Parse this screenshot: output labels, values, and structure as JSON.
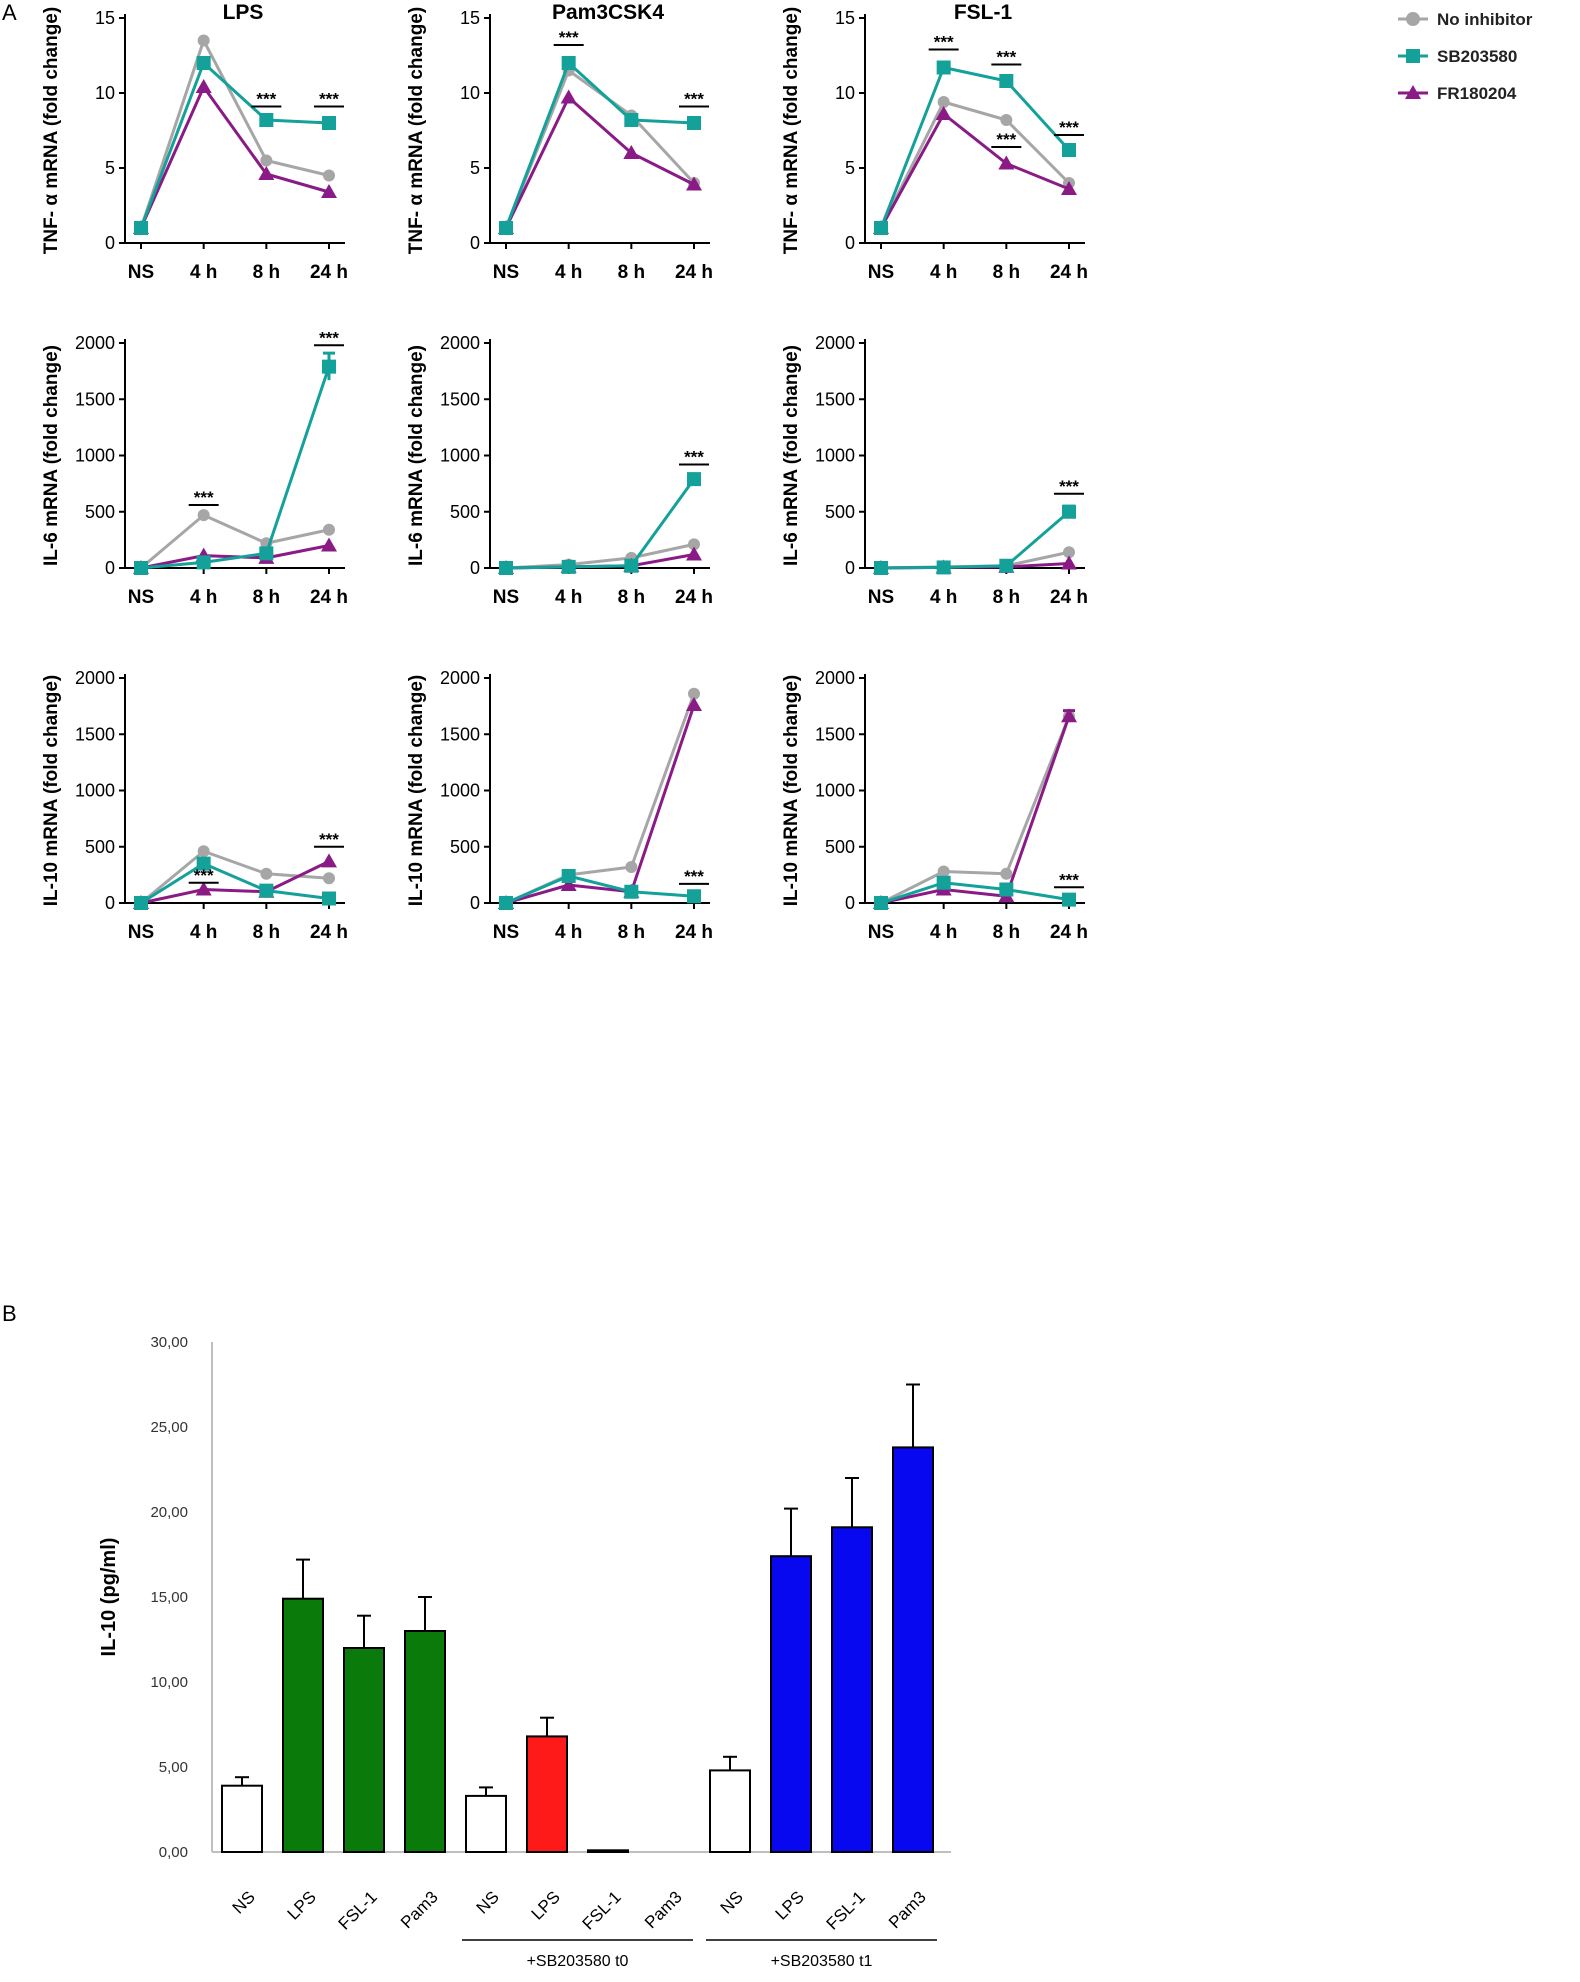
{
  "panel_labels": {
    "a": "A",
    "b": "B"
  },
  "legend": [
    {
      "name": "No inhibitor",
      "color": "#a6a6a6",
      "marker": "circle"
    },
    {
      "name": "SB203580",
      "color": "#13a19a",
      "marker": "square"
    },
    {
      "name": "FR180204",
      "color": "#8a1a86",
      "marker": "triangle"
    }
  ],
  "colors": {
    "none": "#a6a6a6",
    "sb": "#13a19a",
    "fr": "#8a1a86",
    "green": "#0a7a0a",
    "red": "#ff1a1a",
    "blue": "#0808f0"
  },
  "sig_text": "***",
  "chart_data": [
    {
      "id": "tnf-lps",
      "type": "line",
      "title": "LPS",
      "ylabel": "TNF- α mRNA (fold change)",
      "categories": [
        "NS",
        "4 h",
        "8 h",
        "24 h"
      ],
      "ylim": [
        0,
        15
      ],
      "yticks": [
        0,
        5,
        10,
        15
      ],
      "series": [
        {
          "name": "No inhibitor",
          "values": [
            1,
            13.5,
            5.5,
            4.5
          ]
        },
        {
          "name": "SB203580",
          "values": [
            1,
            12,
            8.2,
            8
          ]
        },
        {
          "name": "FR180204",
          "values": [
            1,
            10.4,
            4.6,
            3.4
          ]
        }
      ],
      "significance": [
        {
          "category": "8 h",
          "value": 9.1
        },
        {
          "category": "24 h",
          "value": 9.1
        }
      ]
    },
    {
      "id": "tnf-pam3",
      "type": "line",
      "title": "Pam3CSK4",
      "ylabel": "TNF- α mRNA (fold change)",
      "categories": [
        "NS",
        "4 h",
        "8 h",
        "24 h"
      ],
      "ylim": [
        0,
        15
      ],
      "yticks": [
        0,
        5,
        10,
        15
      ],
      "series": [
        {
          "name": "No inhibitor",
          "values": [
            1,
            11.5,
            8.5,
            4
          ]
        },
        {
          "name": "SB203580",
          "values": [
            1,
            12,
            8.2,
            8
          ]
        },
        {
          "name": "FR180204",
          "values": [
            1,
            9.7,
            6,
            3.9
          ]
        }
      ],
      "significance": [
        {
          "category": "4 h",
          "value": 13.2
        },
        {
          "category": "24 h",
          "value": 9.1
        }
      ]
    },
    {
      "id": "tnf-fsl",
      "type": "line",
      "title": "FSL-1",
      "ylabel": "TNF- α mRNA (fold change)",
      "categories": [
        "NS",
        "4 h",
        "8 h",
        "24 h"
      ],
      "ylim": [
        0,
        15
      ],
      "yticks": [
        0,
        5,
        10,
        15
      ],
      "series": [
        {
          "name": "No inhibitor",
          "values": [
            1,
            9.4,
            8.2,
            4
          ]
        },
        {
          "name": "SB203580",
          "values": [
            1,
            11.7,
            10.8,
            6.2
          ]
        },
        {
          "name": "FR180204",
          "values": [
            1,
            8.6,
            5.3,
            3.6
          ]
        }
      ],
      "significance": [
        {
          "category": "4 h",
          "value": 12.9
        },
        {
          "category": "8 h",
          "value": 11.9
        },
        {
          "category": "8 h",
          "value": 6.4
        },
        {
          "category": "24 h",
          "value": 7.2
        }
      ]
    },
    {
      "id": "il6-lps",
      "type": "line",
      "ylabel": "IL-6 mRNA (fold change)",
      "categories": [
        "NS",
        "4 h",
        "8 h",
        "24 h"
      ],
      "ylim": [
        0,
        2000
      ],
      "yticks": [
        0,
        500,
        1000,
        1500,
        2000
      ],
      "series": [
        {
          "name": "No inhibitor",
          "values": [
            0,
            470,
            220,
            340
          ]
        },
        {
          "name": "SB203580",
          "values": [
            0,
            50,
            130,
            1790
          ],
          "errors": [
            0,
            0,
            0,
            120
          ]
        },
        {
          "name": "FR180204",
          "values": [
            0,
            110,
            90,
            200
          ]
        }
      ],
      "significance": [
        {
          "category": "4 h",
          "value": 560
        },
        {
          "category": "24 h",
          "value": 1980
        }
      ]
    },
    {
      "id": "il6-pam3",
      "type": "line",
      "ylabel": "IL-6 mRNA (fold change)",
      "categories": [
        "NS",
        "4 h",
        "8 h",
        "24 h"
      ],
      "ylim": [
        0,
        2000
      ],
      "yticks": [
        0,
        500,
        1000,
        1500,
        2000
      ],
      "series": [
        {
          "name": "No inhibitor",
          "values": [
            0,
            30,
            90,
            210
          ]
        },
        {
          "name": "SB203580",
          "values": [
            0,
            10,
            20,
            790
          ]
        },
        {
          "name": "FR180204",
          "values": [
            0,
            10,
            20,
            120
          ]
        }
      ],
      "significance": [
        {
          "category": "24 h",
          "value": 920
        }
      ]
    },
    {
      "id": "il6-fsl",
      "type": "line",
      "ylabel": "IL-6 mRNA (fold change)",
      "categories": [
        "NS",
        "4 h",
        "8 h",
        "24 h"
      ],
      "ylim": [
        0,
        2000
      ],
      "yticks": [
        0,
        500,
        1000,
        1500,
        2000
      ],
      "series": [
        {
          "name": "No inhibitor",
          "values": [
            0,
            10,
            20,
            140
          ]
        },
        {
          "name": "SB203580",
          "values": [
            0,
            5,
            20,
            500
          ],
          "errors": [
            0,
            0,
            0,
            50
          ]
        },
        {
          "name": "FR180204",
          "values": [
            0,
            5,
            10,
            40
          ]
        }
      ],
      "significance": [
        {
          "category": "24 h",
          "value": 660
        }
      ]
    },
    {
      "id": "il10-lps",
      "type": "line",
      "ylabel": "IL-10 mRNA (fold change)",
      "categories": [
        "NS",
        "4 h",
        "8 h",
        "24 h"
      ],
      "ylim": [
        0,
        2000
      ],
      "yticks": [
        0,
        500,
        1000,
        1500,
        2000
      ],
      "series": [
        {
          "name": "No inhibitor",
          "values": [
            0,
            460,
            260,
            220
          ]
        },
        {
          "name": "SB203580",
          "values": [
            0,
            350,
            110,
            40
          ]
        },
        {
          "name": "FR180204",
          "values": [
            0,
            120,
            100,
            370
          ]
        }
      ],
      "significance": [
        {
          "category": "4 h",
          "value": 180
        },
        {
          "category": "24 h",
          "value": 500
        }
      ]
    },
    {
      "id": "il10-pam3",
      "type": "line",
      "ylabel": "IL-10 mRNA (fold change)",
      "categories": [
        "NS",
        "4 h",
        "8 h",
        "24 h"
      ],
      "ylim": [
        0,
        2000
      ],
      "yticks": [
        0,
        500,
        1000,
        1500,
        2000
      ],
      "series": [
        {
          "name": "No inhibitor",
          "values": [
            0,
            250,
            320,
            1860
          ]
        },
        {
          "name": "SB203580",
          "values": [
            0,
            240,
            100,
            60
          ]
        },
        {
          "name": "FR180204",
          "values": [
            0,
            160,
            100,
            1760
          ]
        }
      ],
      "significance": [
        {
          "category": "24 h",
          "value": 170
        }
      ]
    },
    {
      "id": "il10-fsl",
      "type": "line",
      "ylabel": "IL-10 mRNA (fold change)",
      "categories": [
        "NS",
        "4 h",
        "8 h",
        "24 h"
      ],
      "ylim": [
        0,
        2000
      ],
      "yticks": [
        0,
        500,
        1000,
        1500,
        2000
      ],
      "series": [
        {
          "name": "No inhibitor",
          "values": [
            0,
            280,
            260,
            1660
          ]
        },
        {
          "name": "SB203580",
          "values": [
            0,
            180,
            120,
            30
          ]
        },
        {
          "name": "FR180204",
          "values": [
            0,
            120,
            60,
            1660
          ],
          "errors": [
            0,
            0,
            0,
            50
          ]
        }
      ],
      "significance": [
        {
          "category": "24 h",
          "value": 140
        }
      ]
    },
    {
      "id": "il10-protein",
      "type": "bar",
      "ylabel": "IL-10 (pg/ml)",
      "ylim": [
        0,
        30
      ],
      "yticks": [
        "0,00",
        "5,00",
        "10,00",
        "15,00",
        "20,00",
        "25,00",
        "30,00"
      ],
      "categories": [
        "NS",
        "LPS",
        "FSL-1",
        "Pam3",
        "NS",
        "LPS",
        "FSL-1",
        "Pam3",
        "NS",
        "LPS",
        "FSL-1",
        "Pam3"
      ],
      "values": [
        3.9,
        14.9,
        12.0,
        13.0,
        3.3,
        6.8,
        0.1,
        0.0,
        4.8,
        17.4,
        19.1,
        23.8
      ],
      "errors": [
        0.5,
        2.3,
        1.9,
        2.0,
        0.5,
        1.1,
        0,
        0,
        0.8,
        2.8,
        2.9,
        3.7
      ],
      "bar_colors": [
        "white",
        "green",
        "green",
        "green",
        "white",
        "red",
        "red",
        "red",
        "white",
        "blue",
        "blue",
        "blue"
      ],
      "groups": [
        {
          "label": "+SB203580 t0",
          "start": 4,
          "end": 7
        },
        {
          "label": "+SB203580 t1",
          "start": 8,
          "end": 11
        }
      ]
    }
  ]
}
